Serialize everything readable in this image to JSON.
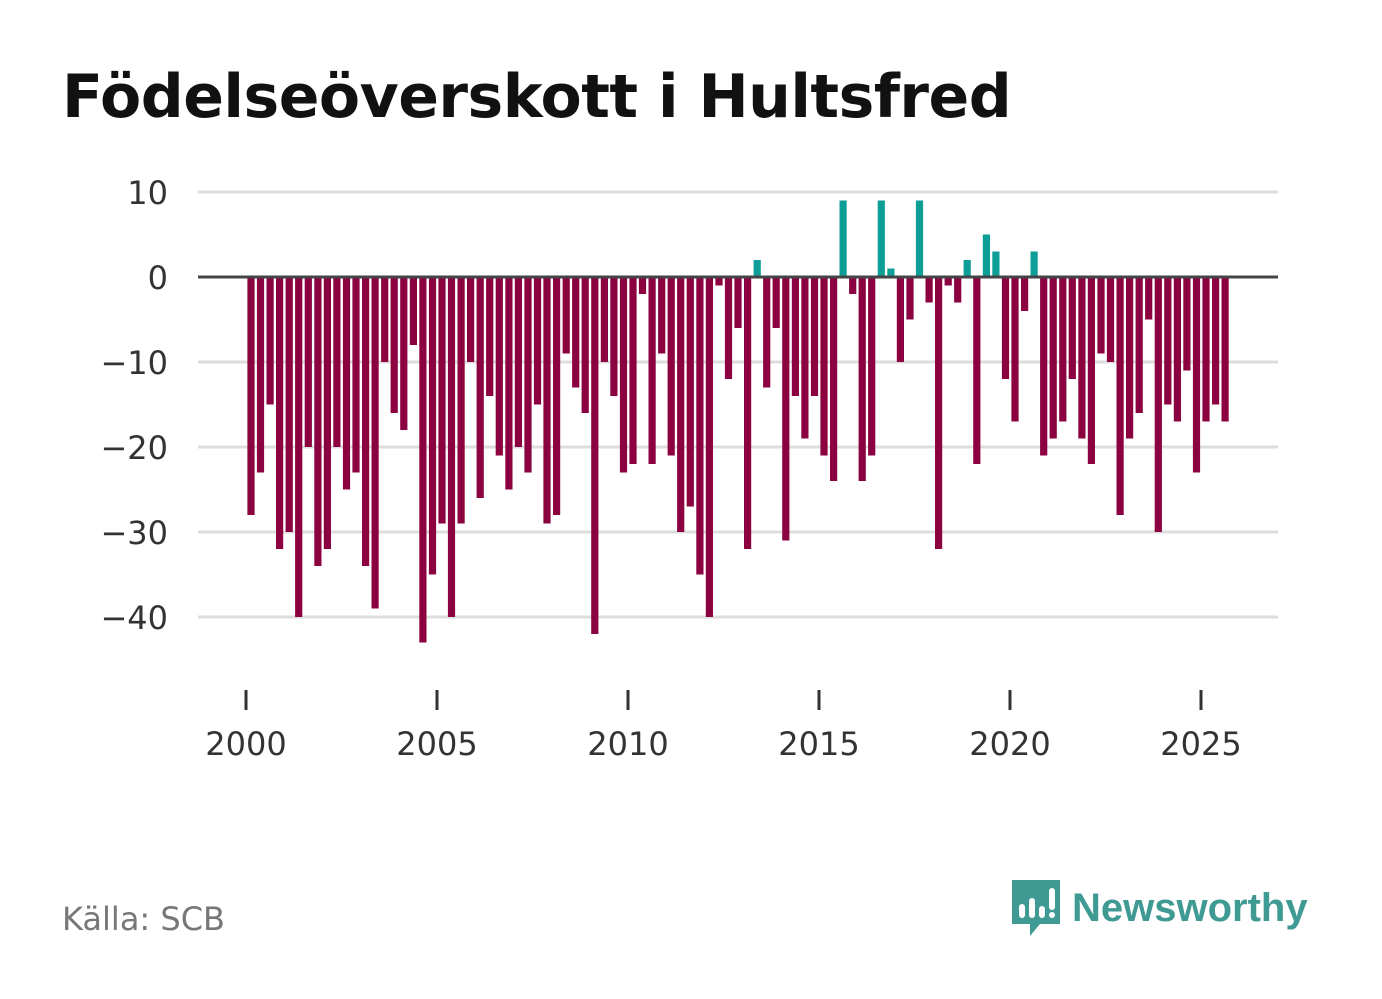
{
  "title": "Födelseöverskott i Hultsfred",
  "source": "Källa: SCB",
  "brand": "Newsworthy",
  "colors": {
    "positive": "#0e9e98",
    "negative": "#8c0240",
    "grid": "#dddddd",
    "zero_line": "#444444",
    "brand": "#3f9a93"
  },
  "chart_data": {
    "type": "bar",
    "title": "Födelseöverskott i Hultsfred",
    "xlabel": "",
    "ylabel": "",
    "ylim": [
      -47,
      10
    ],
    "yticks": [
      10,
      0,
      -10,
      -20,
      -30,
      -40
    ],
    "ytick_labels": [
      "10",
      "0",
      "−10",
      "−20",
      "−30",
      "−40"
    ],
    "xlim": [
      1999.5,
      2027
    ],
    "xticks": [
      2000,
      2005,
      2010,
      2015,
      2020,
      2025
    ],
    "xtick_labels": [
      "2000",
      "2005",
      "2010",
      "2015",
      "2020",
      "2025"
    ],
    "grid": true,
    "frequency": "quarterly",
    "start_period": "2000 Q1",
    "values": [
      -28,
      -23,
      -15,
      -32,
      -30,
      -40,
      -20,
      -34,
      -32,
      -20,
      -25,
      -23,
      -34,
      -39,
      -10,
      -16,
      -18,
      -8,
      -43,
      -35,
      -29,
      -40,
      -29,
      -10,
      -26,
      -14,
      -21,
      -25,
      -20,
      -23,
      -15,
      -29,
      -28,
      -9,
      -13,
      -16,
      -42,
      -10,
      -14,
      -23,
      -22,
      -2,
      -22,
      -9,
      -21,
      -30,
      -27,
      -35,
      -40,
      -1,
      -12,
      -6,
      -32,
      2,
      -13,
      -6,
      -31,
      -14,
      -19,
      -14,
      -21,
      -24,
      9,
      -2,
      -24,
      -21,
      9,
      1,
      -10,
      -5,
      9,
      -3,
      -32,
      -1,
      -3,
      2,
      -22,
      5,
      3,
      -12,
      -17,
      -4,
      3,
      -21,
      -19,
      -17,
      -12,
      -19,
      -22,
      -9,
      -10,
      -28,
      -19,
      -16,
      -5,
      -30,
      -15,
      -17,
      -11,
      -23,
      -17,
      -15,
      -17
    ]
  }
}
